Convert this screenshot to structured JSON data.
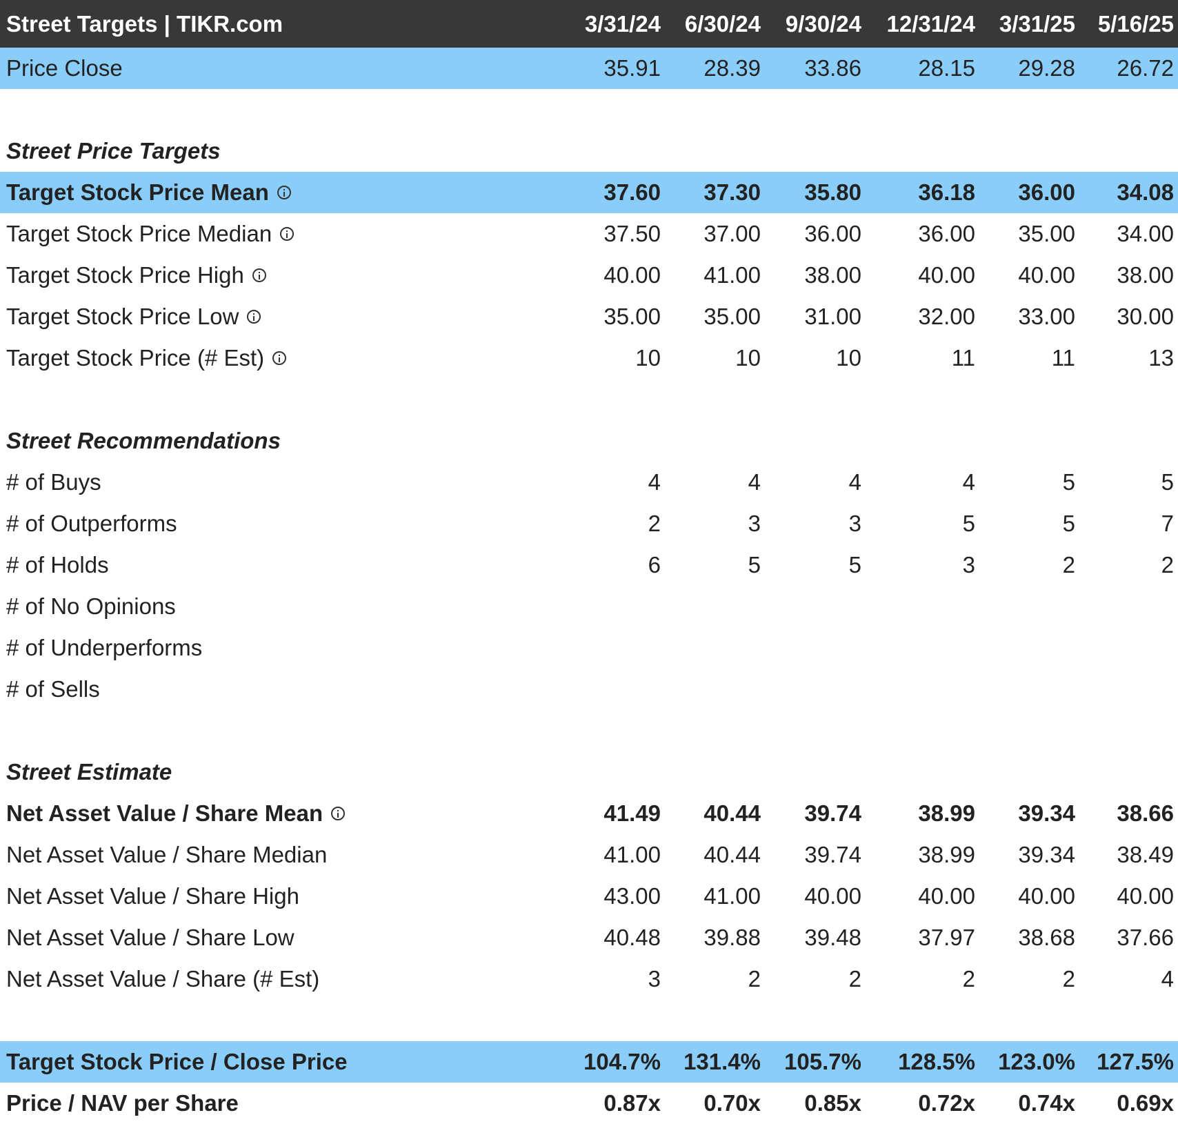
{
  "title": "Street Targets | TIKR.com",
  "columns": [
    "3/31/24",
    "6/30/24",
    "9/30/24",
    "12/31/24",
    "3/31/25",
    "5/16/25"
  ],
  "rows": [
    {
      "kind": "data",
      "label": "Price Close",
      "values": [
        "35.91",
        "28.39",
        "33.86",
        "28.15",
        "29.28",
        "26.72"
      ],
      "highlight": true,
      "bold": false,
      "info": false
    },
    {
      "kind": "blank"
    },
    {
      "kind": "section",
      "label": "Street Price Targets"
    },
    {
      "kind": "data",
      "label": "Target Stock Price Mean",
      "values": [
        "37.60",
        "37.30",
        "35.80",
        "36.18",
        "36.00",
        "34.08"
      ],
      "highlight": true,
      "bold": true,
      "info": true
    },
    {
      "kind": "data",
      "label": "Target Stock Price Median",
      "values": [
        "37.50",
        "37.00",
        "36.00",
        "36.00",
        "35.00",
        "34.00"
      ],
      "highlight": false,
      "bold": false,
      "info": true
    },
    {
      "kind": "data",
      "label": "Target Stock Price High",
      "values": [
        "40.00",
        "41.00",
        "38.00",
        "40.00",
        "40.00",
        "38.00"
      ],
      "highlight": false,
      "bold": false,
      "info": true
    },
    {
      "kind": "data",
      "label": "Target Stock Price Low",
      "values": [
        "35.00",
        "35.00",
        "31.00",
        "32.00",
        "33.00",
        "30.00"
      ],
      "highlight": false,
      "bold": false,
      "info": true
    },
    {
      "kind": "data",
      "label": "Target Stock Price (# Est)",
      "values": [
        "10",
        "10",
        "10",
        "11",
        "11",
        "13"
      ],
      "highlight": false,
      "bold": false,
      "info": true
    },
    {
      "kind": "blank"
    },
    {
      "kind": "section",
      "label": "Street Recommendations"
    },
    {
      "kind": "data",
      "label": "# of Buys",
      "values": [
        "4",
        "4",
        "4",
        "4",
        "5",
        "5"
      ],
      "highlight": false,
      "bold": false,
      "info": false
    },
    {
      "kind": "data",
      "label": "# of Outperforms",
      "values": [
        "2",
        "3",
        "3",
        "5",
        "5",
        "7"
      ],
      "highlight": false,
      "bold": false,
      "info": false
    },
    {
      "kind": "data",
      "label": "# of Holds",
      "values": [
        "6",
        "5",
        "5",
        "3",
        "2",
        "2"
      ],
      "highlight": false,
      "bold": false,
      "info": false
    },
    {
      "kind": "data",
      "label": "# of No Opinions",
      "values": [
        "",
        "",
        "",
        "",
        "",
        ""
      ],
      "highlight": false,
      "bold": false,
      "info": false
    },
    {
      "kind": "data",
      "label": "# of Underperforms",
      "values": [
        "",
        "",
        "",
        "",
        "",
        ""
      ],
      "highlight": false,
      "bold": false,
      "info": false
    },
    {
      "kind": "data",
      "label": "# of Sells",
      "values": [
        "",
        "",
        "",
        "",
        "",
        ""
      ],
      "highlight": false,
      "bold": false,
      "info": false
    },
    {
      "kind": "blank"
    },
    {
      "kind": "section",
      "label": "Street Estimate"
    },
    {
      "kind": "data",
      "label": "Net Asset Value / Share Mean",
      "values": [
        "41.49",
        "40.44",
        "39.74",
        "38.99",
        "39.34",
        "38.66"
      ],
      "highlight": false,
      "bold": true,
      "info": true
    },
    {
      "kind": "data",
      "label": "Net Asset Value / Share Median",
      "values": [
        "41.00",
        "40.44",
        "39.74",
        "38.99",
        "39.34",
        "38.49"
      ],
      "highlight": false,
      "bold": false,
      "info": false
    },
    {
      "kind": "data",
      "label": "Net Asset Value / Share High",
      "values": [
        "43.00",
        "41.00",
        "40.00",
        "40.00",
        "40.00",
        "40.00"
      ],
      "highlight": false,
      "bold": false,
      "info": false
    },
    {
      "kind": "data",
      "label": "Net Asset Value / Share Low",
      "values": [
        "40.48",
        "39.88",
        "39.48",
        "37.97",
        "38.68",
        "37.66"
      ],
      "highlight": false,
      "bold": false,
      "info": false
    },
    {
      "kind": "data",
      "label": "Net Asset Value / Share (# Est)",
      "values": [
        "3",
        "2",
        "2",
        "2",
        "2",
        "4"
      ],
      "highlight": false,
      "bold": false,
      "info": false
    },
    {
      "kind": "blank"
    },
    {
      "kind": "data",
      "label": "Target Stock Price / Close Price",
      "values": [
        "104.7%",
        "131.4%",
        "105.7%",
        "128.5%",
        "123.0%",
        "127.5%"
      ],
      "highlight": true,
      "bold": true,
      "info": false
    },
    {
      "kind": "data",
      "label": "Price / NAV per Share",
      "values": [
        "0.87x",
        "0.70x",
        "0.85x",
        "0.72x",
        "0.74x",
        "0.69x"
      ],
      "highlight": false,
      "bold": true,
      "info": false
    }
  ]
}
